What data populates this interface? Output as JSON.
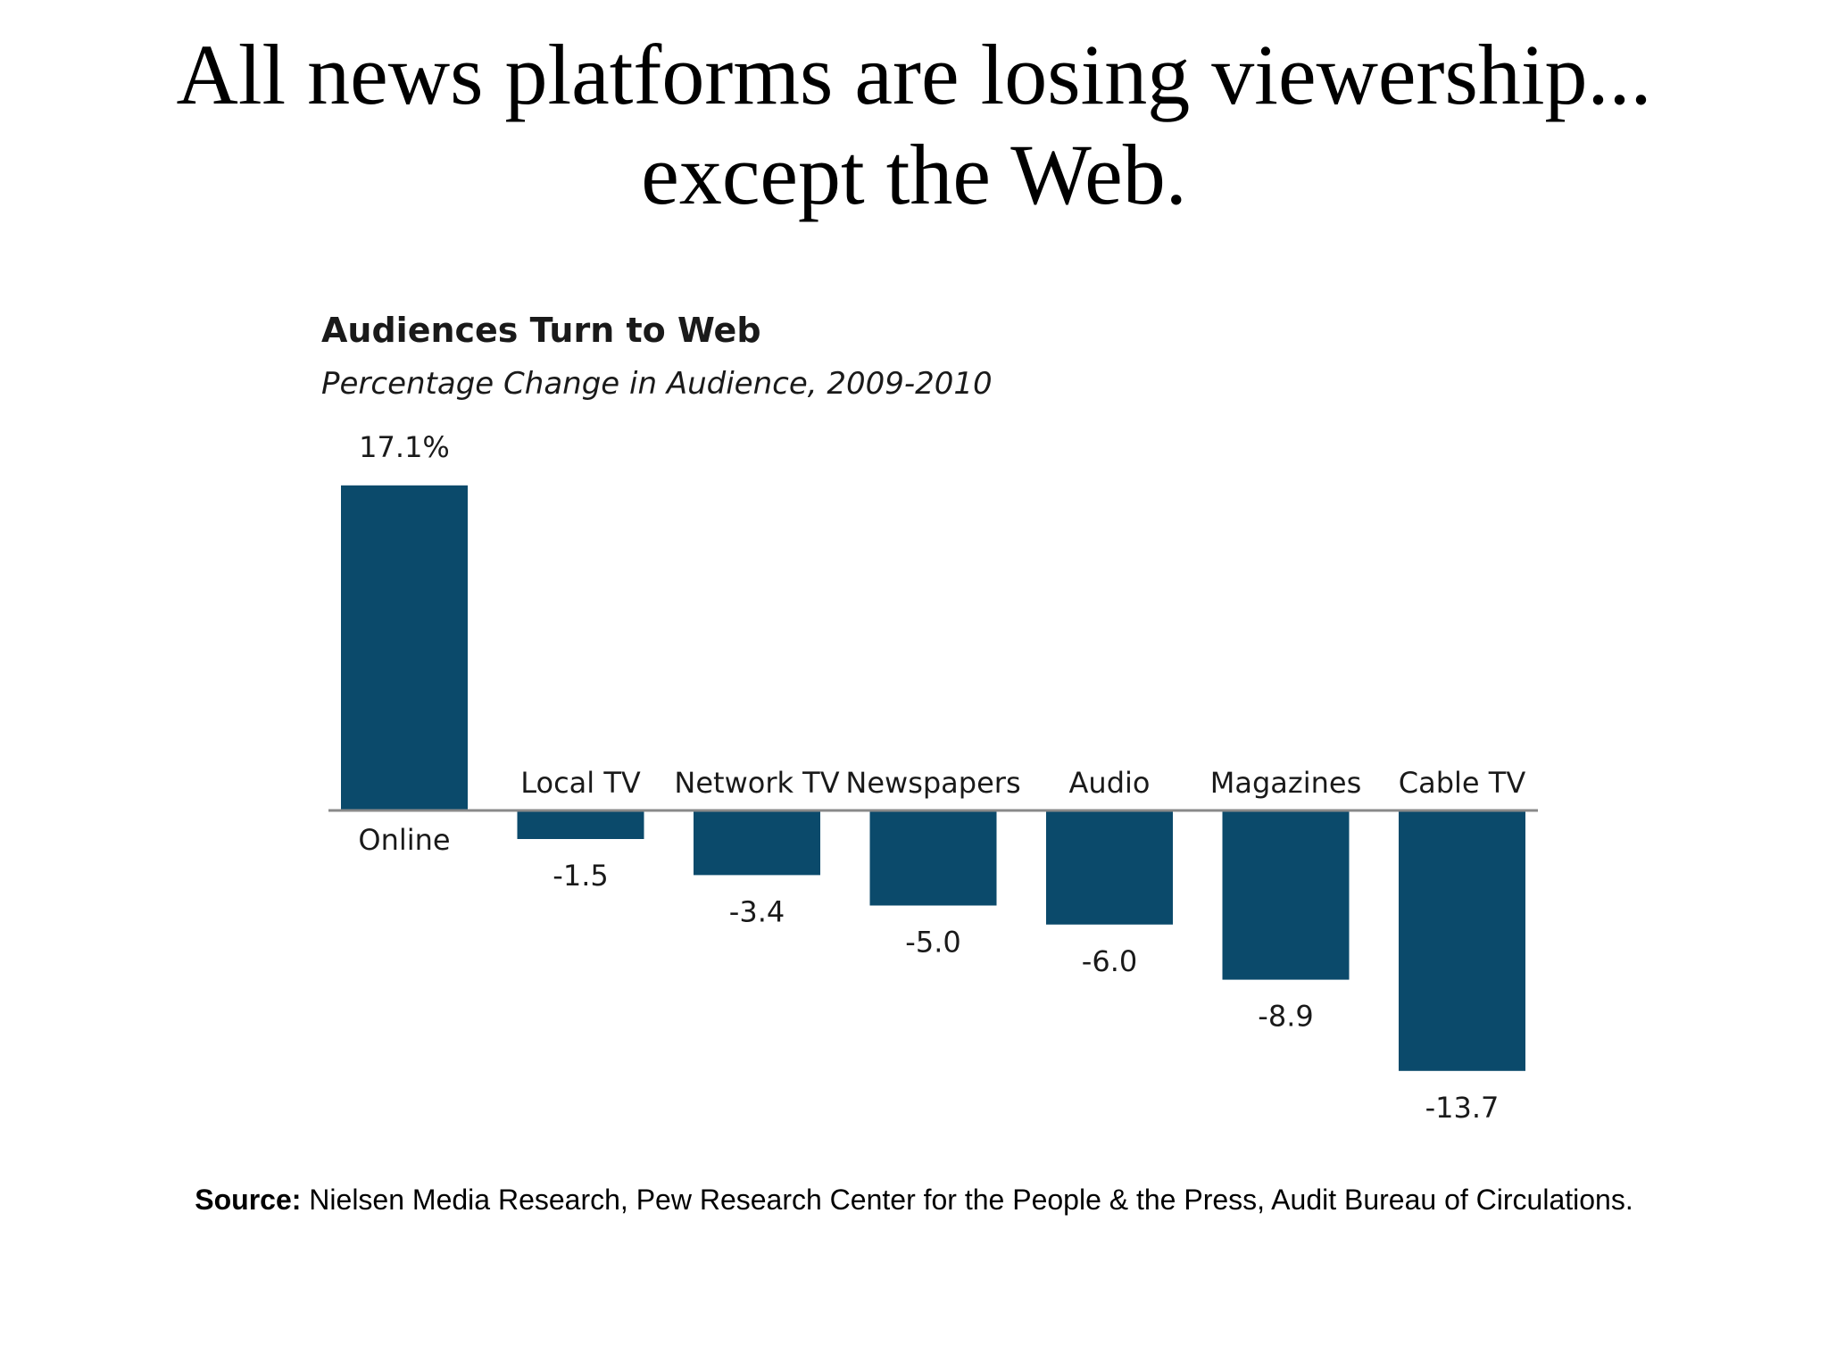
{
  "slide": {
    "title_line1": "All news platforms are losing viewership...",
    "title_line2": "except the Web."
  },
  "source": {
    "label": "Source:",
    "text": " Nielsen Media Research, Pew Research Center for the People & the Press, Audit Bureau of Circulations."
  },
  "colors": {
    "bar": "#0b4a6b",
    "axis": "#8a8a8a",
    "text": "#1a1a1a"
  },
  "chart_data": {
    "type": "bar",
    "title": "Audiences Turn to Web",
    "subtitle": "Percentage Change in Audience, 2009-2010",
    "categories": [
      "Online",
      "Local TV",
      "Network TV",
      "Newspapers",
      "Audio",
      "Magazines",
      "Cable TV"
    ],
    "values": [
      17.1,
      -1.5,
      -3.4,
      -5.0,
      -6.0,
      -8.9,
      -13.7
    ],
    "data_labels": [
      "17.1%",
      "-1.5",
      "-3.4",
      "-5.0",
      "-6.0",
      "-8.9",
      "-13.7"
    ],
    "xlabel": "",
    "ylabel": "",
    "ylim": [
      -13.7,
      17.1
    ],
    "grid": false,
    "legend": "none"
  }
}
